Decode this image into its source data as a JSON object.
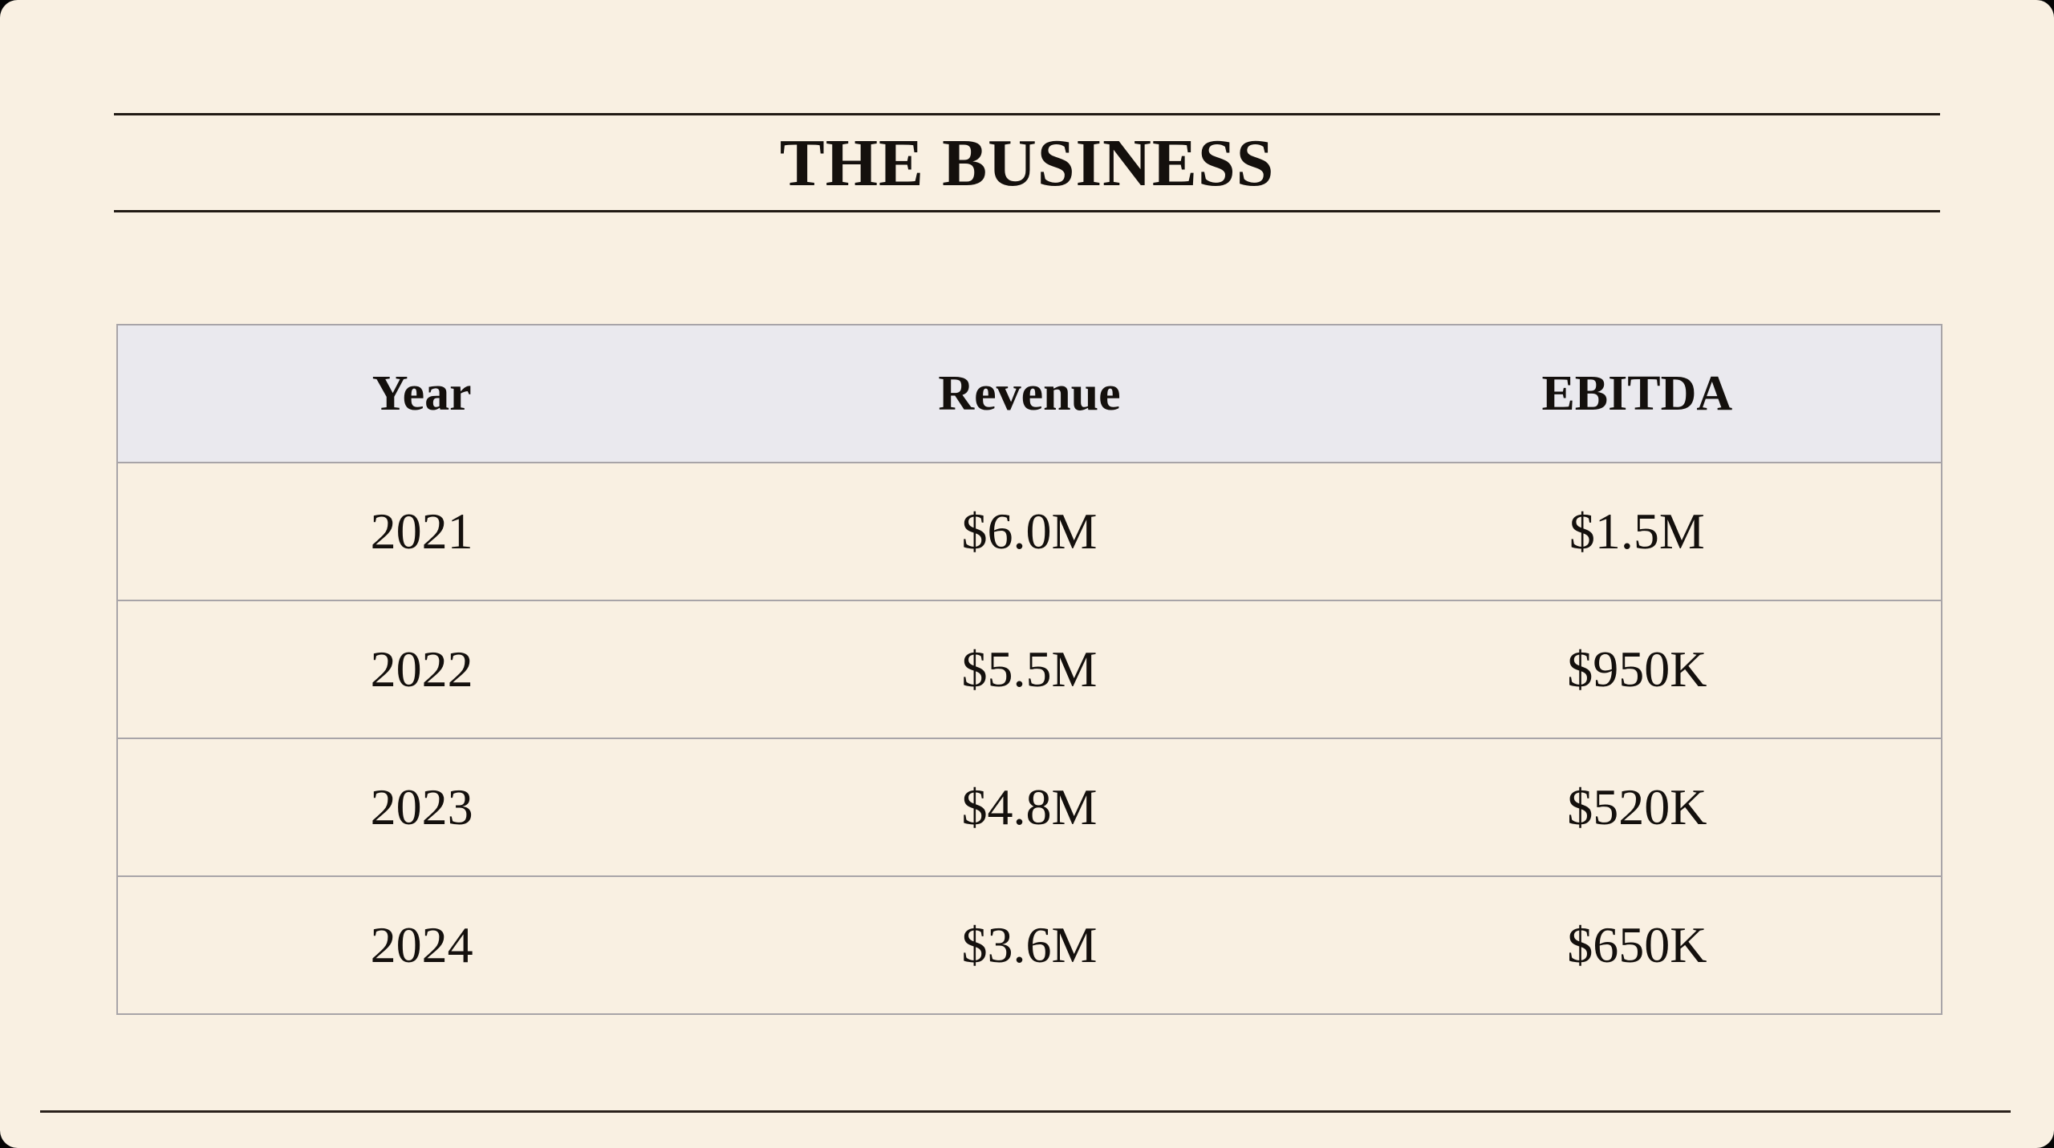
{
  "slide": {
    "title": "THE BUSINESS"
  },
  "table": {
    "columns": [
      "Year",
      "Revenue",
      "EBITDA"
    ],
    "rows": [
      [
        "2021",
        "$6.0M",
        "$1.5M"
      ],
      [
        "2022",
        "$5.5M",
        "$950K"
      ],
      [
        "2023",
        "$4.8M",
        "$520K"
      ],
      [
        "2024",
        "$3.6M",
        "$650K"
      ]
    ]
  },
  "colors": {
    "slide_background": "#f9f0e2",
    "behind_slide": "#050505",
    "header_row_background": "#eae9ee",
    "table_border": "#a8a4a8",
    "text": "#14100d",
    "rule": "#211a14"
  }
}
